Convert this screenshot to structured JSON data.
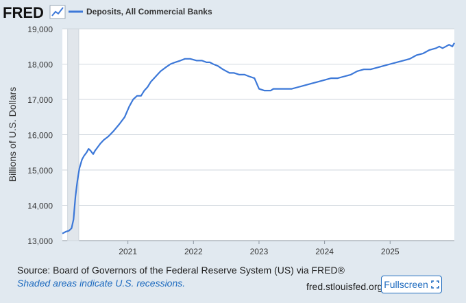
{
  "logo": {
    "text": "FRED"
  },
  "chart_data": {
    "type": "line",
    "title": "Deposits, All Commercial Banks",
    "xlabel": "",
    "ylabel": "Billions of U.S. Dollars",
    "ylim": [
      13000,
      19000
    ],
    "xlim": [
      2020.0,
      2025.98
    ],
    "yticks": [
      13000,
      14000,
      15000,
      16000,
      17000,
      18000,
      19000
    ],
    "ytick_labels": [
      "13,000",
      "14,000",
      "15,000",
      "16,000",
      "17,000",
      "18,000",
      "19,000"
    ],
    "xticks": [
      2021,
      2022,
      2023,
      2024,
      2025
    ],
    "xtick_labels": [
      "2021",
      "2022",
      "2023",
      "2024",
      "2025"
    ],
    "grid": true,
    "legend": "top-left",
    "recession": {
      "start": 2020.08,
      "end": 2020.25
    },
    "series": [
      {
        "name": "Deposits, All Commercial Banks",
        "color": "#3c78d8",
        "x": [
          2020.0,
          2020.05,
          2020.1,
          2020.14,
          2020.17,
          2020.2,
          2020.23,
          2020.26,
          2020.3,
          2020.33,
          2020.37,
          2020.4,
          2020.43,
          2020.45,
          2020.47,
          2020.5,
          2020.54,
          2020.58,
          2020.63,
          2020.7,
          2020.78,
          2020.87,
          2020.95,
          2021.02,
          2021.08,
          2021.14,
          2021.2,
          2021.25,
          2021.3,
          2021.35,
          2021.4,
          2021.45,
          2021.5,
          2021.57,
          2021.65,
          2021.72,
          2021.8,
          2021.87,
          2021.95,
          2022.05,
          2022.13,
          2022.2,
          2022.25,
          2022.3,
          2022.37,
          2022.45,
          2022.55,
          2022.62,
          2022.7,
          2022.78,
          2022.85,
          2022.93,
          2023.0,
          2023.08,
          2023.15,
          2023.18,
          2023.22,
          2023.3,
          2023.4,
          2023.5,
          2023.6,
          2023.7,
          2023.8,
          2023.9,
          2024.0,
          2024.1,
          2024.2,
          2024.3,
          2024.4,
          2024.5,
          2024.6,
          2024.7,
          2024.8,
          2024.9,
          2025.0,
          2025.1,
          2025.2,
          2025.3,
          2025.4,
          2025.5,
          2025.6,
          2025.7,
          2025.75,
          2025.8,
          2025.85,
          2025.9,
          2025.95,
          2025.98
        ],
        "values": [
          13200,
          13250,
          13280,
          13350,
          13600,
          14250,
          14700,
          15050,
          15300,
          15400,
          15500,
          15600,
          15550,
          15500,
          15450,
          15550,
          15650,
          15750,
          15850,
          15950,
          16100,
          16300,
          16500,
          16800,
          17000,
          17100,
          17100,
          17250,
          17350,
          17500,
          17600,
          17700,
          17800,
          17900,
          18000,
          18050,
          18100,
          18150,
          18150,
          18100,
          18100,
          18050,
          18050,
          18000,
          17950,
          17850,
          17750,
          17750,
          17700,
          17700,
          17650,
          17600,
          17300,
          17250,
          17250,
          17250,
          17300,
          17300,
          17300,
          17300,
          17350,
          17400,
          17450,
          17500,
          17550,
          17600,
          17600,
          17650,
          17700,
          17800,
          17850,
          17850,
          17900,
          17950,
          18000,
          18050,
          18100,
          18150,
          18250,
          18300,
          18400,
          18450,
          18500,
          18450,
          18500,
          18550,
          18500,
          18600
        ]
      }
    ]
  },
  "footer": {
    "source": "Source: Board of Governors of the Federal Reserve System (US) via FRED®",
    "note": "Shaded areas indicate U.S. recessions.",
    "site": "fred.stlouisfed.org",
    "fullscreen_label": "Fullscreen"
  }
}
